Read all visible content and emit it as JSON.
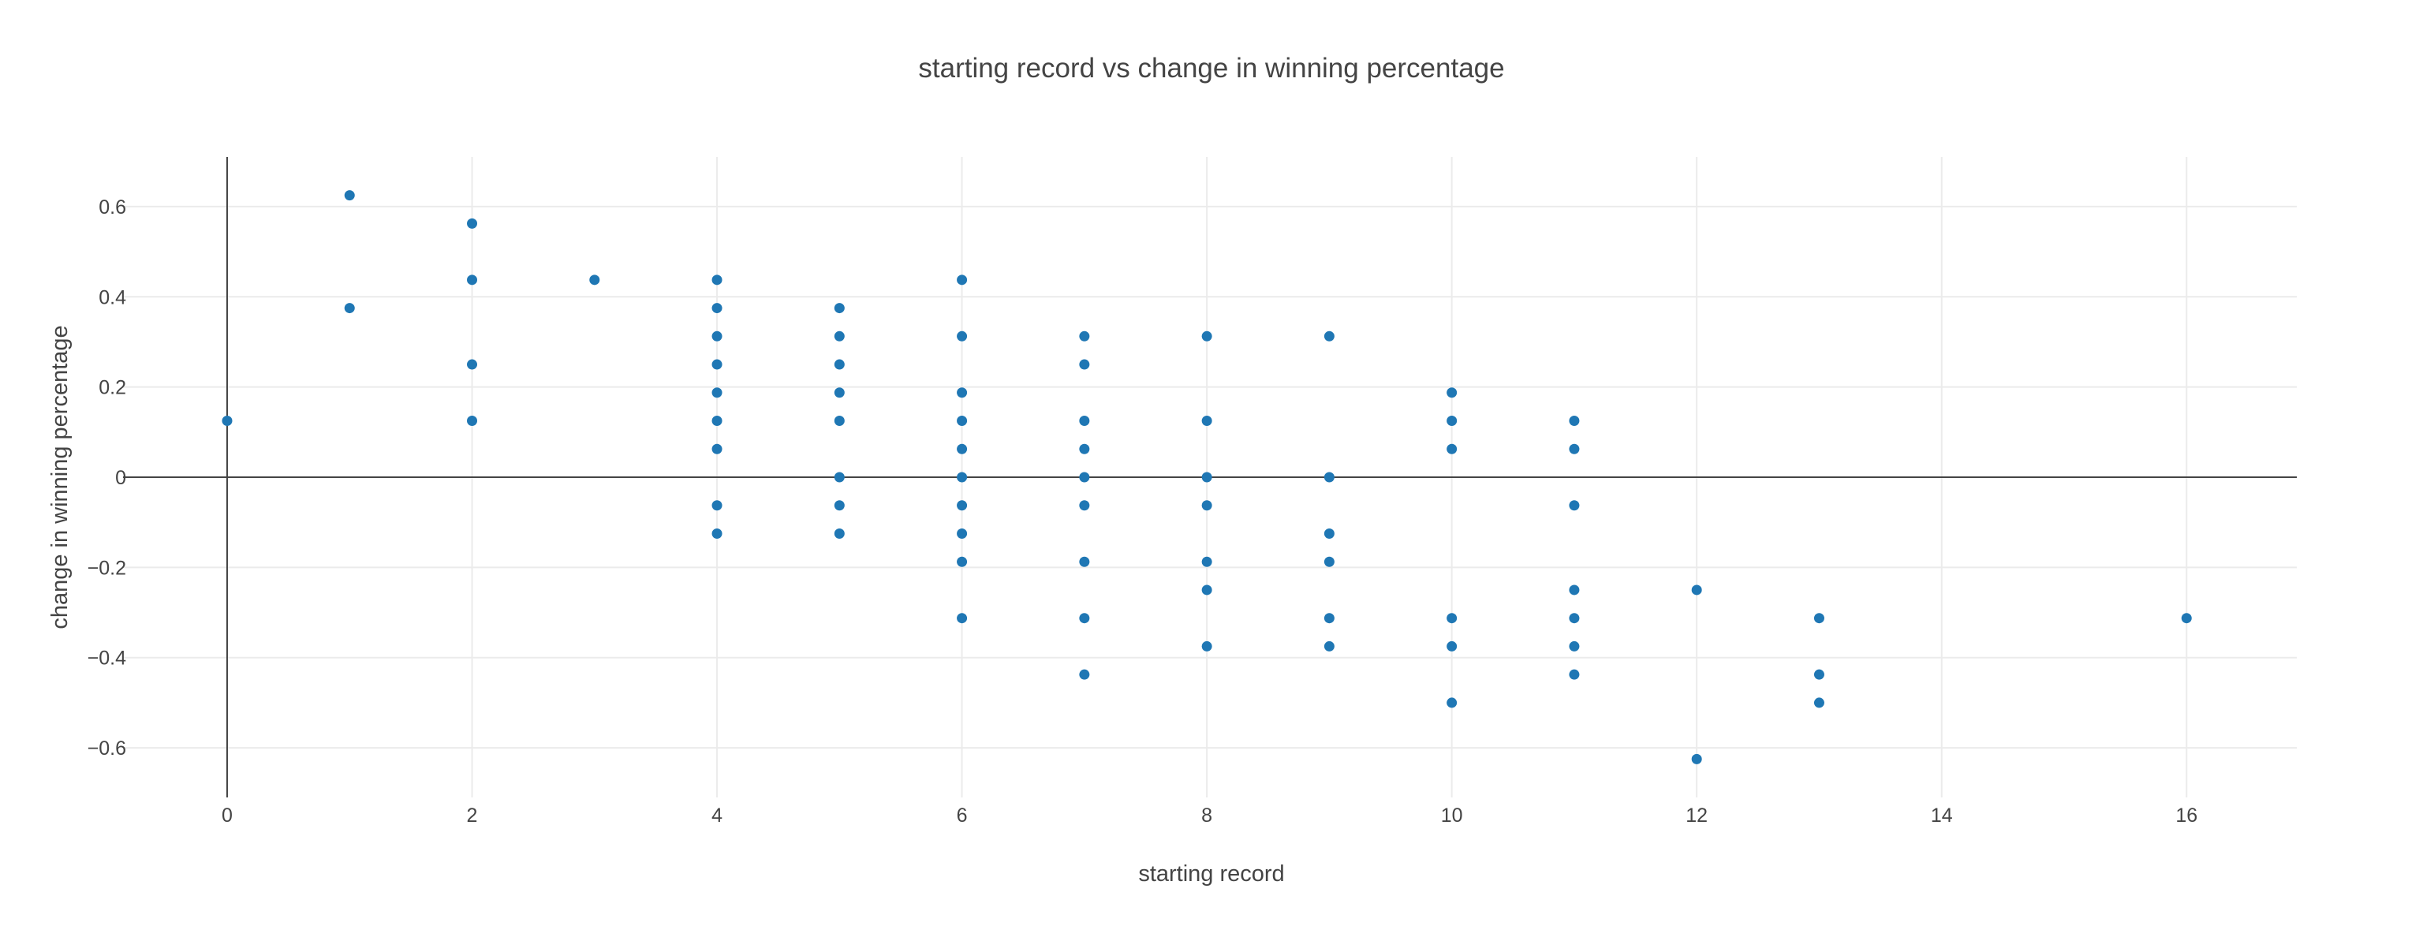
{
  "chart_data": {
    "type": "scatter",
    "title": "starting record vs change in winning percentage",
    "xlabel": "starting record",
    "ylabel": "change in winning percentage",
    "xlim": [
      -0.85,
      16.9
    ],
    "ylim": [
      -0.71,
      0.71
    ],
    "x_ticks": [
      0,
      2,
      4,
      6,
      8,
      10,
      12,
      14,
      16
    ],
    "x_tick_labels": [
      "0",
      "2",
      "4",
      "6",
      "8",
      "10",
      "12",
      "14",
      "16"
    ],
    "y_ticks": [
      -0.6,
      -0.4,
      -0.2,
      0,
      0.2,
      0.4,
      0.6
    ],
    "y_tick_labels": [
      "−0.6",
      "−0.4",
      "−0.2",
      "0",
      "0.2",
      "0.4",
      "0.6"
    ],
    "grid": true,
    "zero_lines": true,
    "marker_color": "#1f77b4",
    "gridline_color": "#ebebeb",
    "zeroline_color": "#444444",
    "points": [
      {
        "x": 0,
        "y": 0.125
      },
      {
        "x": 1,
        "y": 0.625
      },
      {
        "x": 1,
        "y": 0.375
      },
      {
        "x": 2,
        "y": 0.5625
      },
      {
        "x": 2,
        "y": 0.4375
      },
      {
        "x": 2,
        "y": 0.25
      },
      {
        "x": 2,
        "y": 0.125
      },
      {
        "x": 3,
        "y": 0.4375
      },
      {
        "x": 4,
        "y": 0.4375
      },
      {
        "x": 4,
        "y": 0.375
      },
      {
        "x": 4,
        "y": 0.3125
      },
      {
        "x": 4,
        "y": 0.25
      },
      {
        "x": 4,
        "y": 0.1875
      },
      {
        "x": 4,
        "y": 0.125
      },
      {
        "x": 4,
        "y": 0.0625
      },
      {
        "x": 4,
        "y": -0.0625
      },
      {
        "x": 4,
        "y": -0.125
      },
      {
        "x": 5,
        "y": 0.375
      },
      {
        "x": 5,
        "y": 0.3125
      },
      {
        "x": 5,
        "y": 0.25
      },
      {
        "x": 5,
        "y": 0.1875
      },
      {
        "x": 5,
        "y": 0.125
      },
      {
        "x": 5,
        "y": 0
      },
      {
        "x": 5,
        "y": -0.0625
      },
      {
        "x": 5,
        "y": -0.125
      },
      {
        "x": 6,
        "y": 0.4375
      },
      {
        "x": 6,
        "y": 0.3125
      },
      {
        "x": 6,
        "y": 0.1875
      },
      {
        "x": 6,
        "y": 0.125
      },
      {
        "x": 6,
        "y": 0.0625
      },
      {
        "x": 6,
        "y": 0
      },
      {
        "x": 6,
        "y": -0.0625
      },
      {
        "x": 6,
        "y": -0.125
      },
      {
        "x": 6,
        "y": -0.1875
      },
      {
        "x": 6,
        "y": -0.3125
      },
      {
        "x": 7,
        "y": 0.3125
      },
      {
        "x": 7,
        "y": 0.25
      },
      {
        "x": 7,
        "y": 0.125
      },
      {
        "x": 7,
        "y": 0.0625
      },
      {
        "x": 7,
        "y": 0
      },
      {
        "x": 7,
        "y": -0.0625
      },
      {
        "x": 7,
        "y": -0.1875
      },
      {
        "x": 7,
        "y": -0.3125
      },
      {
        "x": 7,
        "y": -0.4375
      },
      {
        "x": 8,
        "y": 0.3125
      },
      {
        "x": 8,
        "y": 0.125
      },
      {
        "x": 8,
        "y": 0
      },
      {
        "x": 8,
        "y": -0.0625
      },
      {
        "x": 8,
        "y": -0.1875
      },
      {
        "x": 8,
        "y": -0.25
      },
      {
        "x": 8,
        "y": -0.375
      },
      {
        "x": 9,
        "y": 0.3125
      },
      {
        "x": 9,
        "y": 0
      },
      {
        "x": 9,
        "y": -0.125
      },
      {
        "x": 9,
        "y": -0.1875
      },
      {
        "x": 9,
        "y": -0.3125
      },
      {
        "x": 9,
        "y": -0.375
      },
      {
        "x": 10,
        "y": 0.1875
      },
      {
        "x": 10,
        "y": 0.125
      },
      {
        "x": 10,
        "y": 0.0625
      },
      {
        "x": 10,
        "y": -0.3125
      },
      {
        "x": 10,
        "y": -0.375
      },
      {
        "x": 10,
        "y": -0.5
      },
      {
        "x": 11,
        "y": 0.125
      },
      {
        "x": 11,
        "y": 0.0625
      },
      {
        "x": 11,
        "y": -0.0625
      },
      {
        "x": 11,
        "y": -0.25
      },
      {
        "x": 11,
        "y": -0.3125
      },
      {
        "x": 11,
        "y": -0.375
      },
      {
        "x": 11,
        "y": -0.4375
      },
      {
        "x": 12,
        "y": -0.25
      },
      {
        "x": 12,
        "y": -0.625
      },
      {
        "x": 13,
        "y": -0.3125
      },
      {
        "x": 13,
        "y": -0.4375
      },
      {
        "x": 13,
        "y": -0.5
      },
      {
        "x": 16,
        "y": -0.3125
      }
    ]
  }
}
